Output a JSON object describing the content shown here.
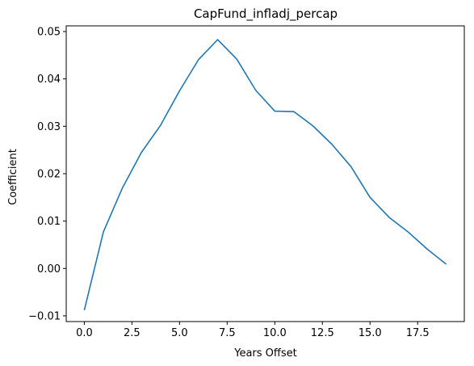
{
  "chart_data": {
    "type": "line",
    "title": "CapFund_infladj_percap",
    "xlabel": "Years Offset",
    "ylabel": "Coefficient",
    "xlim": [
      -0.95,
      19.95
    ],
    "ylim": [
      -0.0112,
      0.0512
    ],
    "xticks": [
      0.0,
      2.5,
      5.0,
      7.5,
      10.0,
      12.5,
      15.0,
      17.5
    ],
    "xtick_labels": [
      "0.0",
      "2.5",
      "5.0",
      "7.5",
      "10.0",
      "12.5",
      "15.0",
      "17.5"
    ],
    "yticks": [
      -0.01,
      0.0,
      0.01,
      0.02,
      0.03,
      0.04,
      0.05
    ],
    "ytick_labels": [
      "−0.01",
      "0.00",
      "0.01",
      "0.02",
      "0.03",
      "0.04",
      "0.05"
    ],
    "grid": false,
    "series": [
      {
        "color": "#1f77b4",
        "x": [
          0,
          1,
          2,
          3,
          4,
          5,
          6,
          7,
          8,
          9,
          10,
          11,
          12,
          13,
          14,
          15,
          16,
          17,
          18,
          19
        ],
        "y": [
          -0.0088,
          0.0077,
          0.017,
          0.0245,
          0.0302,
          0.0375,
          0.0441,
          0.0483,
          0.0442,
          0.0376,
          0.0332,
          0.0331,
          0.0301,
          0.0262,
          0.0215,
          0.015,
          0.0108,
          0.0077,
          0.0041,
          0.0009
        ]
      }
    ]
  }
}
